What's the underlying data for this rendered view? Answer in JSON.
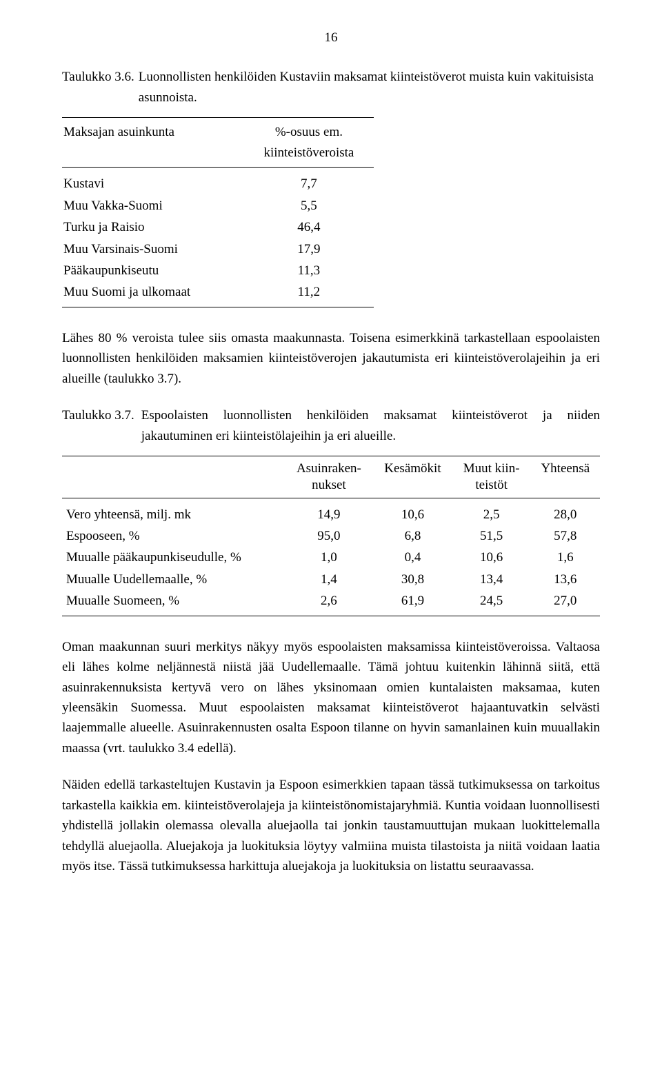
{
  "page_number": "16",
  "table1": {
    "caption_label": "Taulukko 3.6.",
    "caption_text": "Luonnollisten henkilöiden Kustaviin maksamat kiinteistöverot muista kuin vakituisista asunnoista.",
    "header_left": "Maksajan asuinkunta",
    "header_right_line1": "%-osuus em.",
    "header_right_line2": "kiinteistöveroista",
    "rows": [
      {
        "name": "Kustavi",
        "value": "7,7"
      },
      {
        "name": "Muu Vakka-Suomi",
        "value": "5,5"
      },
      {
        "name": "Turku ja Raisio",
        "value": "46,4"
      },
      {
        "name": "Muu Varsinais-Suomi",
        "value": "17,9"
      },
      {
        "name": "Pääkaupunkiseutu",
        "value": "11,3"
      },
      {
        "name": "Muu Suomi ja ulkomaat",
        "value": "11,2"
      }
    ]
  },
  "para1": "Lähes 80 % veroista tulee siis omasta maakunnasta. Toisena esimerkkinä tarkastellaan espoolaisten luonnollisten henkilöiden maksamien kiinteistöverojen jakautumista eri kiinteistöverolajeihin ja eri alueille (taulukko 3.7).",
  "table2": {
    "caption_label": "Taulukko 3.7.",
    "caption_text": "Espoolaisten luonnollisten henkilöiden maksamat kiinteistöverot ja niiden jakautuminen eri kiinteistölajeihin ja eri alueille.",
    "headers": [
      "",
      "Asuinraken-\nnukset",
      "Kesämökit",
      "Muut kiin-\nteistöt",
      "Yhteensä"
    ],
    "rows": [
      {
        "name": "Vero yhteensä, milj. mk",
        "values": [
          "14,9",
          "10,6",
          "2,5",
          "28,0"
        ]
      },
      {
        "name": "Espooseen, %",
        "values": [
          "95,0",
          "6,8",
          "51,5",
          "57,8"
        ]
      },
      {
        "name": "Muualle pääkaupunkiseudulle, %",
        "values": [
          "1,0",
          "0,4",
          "10,6",
          "1,6"
        ]
      },
      {
        "name": "Muualle Uudellemaalle, %",
        "values": [
          "1,4",
          "30,8",
          "13,4",
          "13,6"
        ]
      },
      {
        "name": "Muualle Suomeen, %",
        "values": [
          "2,6",
          "61,9",
          "24,5",
          "27,0"
        ]
      }
    ]
  },
  "para2": "Oman maakunnan suuri merkitys näkyy myös espoolaisten maksamissa kiinteistöveroissa. Valtaosa eli lähes kolme neljännestä niistä jää Uudellemaalle. Tämä johtuu kuitenkin lähinnä siitä, että asuinrakennuksista kertyvä vero on lähes yksinomaan omien kuntalaisten maksamaa, kuten yleensäkin Suomessa. Muut espoolaisten maksamat kiinteistöverot hajaantuvatkin selvästi laajemmalle alueelle. Asuinrakennusten osalta Espoon tilanne on hyvin samanlainen kuin muuallakin maassa (vrt. taulukko 3.4 edellä).",
  "para3": "Näiden edellä tarkasteltujen Kustavin ja Espoon esimerkkien tapaan tässä tutkimuksessa on tarkoitus tarkastella kaikkia em. kiinteistöverolajeja ja kiinteistönomistajaryhmiä. Kuntia voidaan luonnollisesti yhdistellä jollakin olemassa olevalla aluejaolla tai jonkin taustamuuttujan mukaan luokittelemalla tehdyllä aluejaolla. Aluejakoja ja luokituksia löytyy valmiina muista tilastoista ja niitä voidaan laatia myös itse. Tässä tutkimuksessa harkittuja aluejakoja ja luokituksia on listattu seuraavassa."
}
